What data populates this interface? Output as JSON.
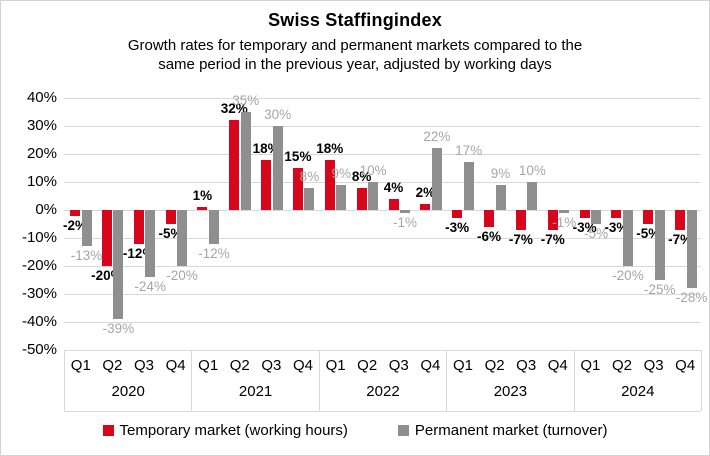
{
  "chart": {
    "title": "Swiss Staffingindex",
    "subtitle_lines": [
      "Growth rates for temporary and permanent markets compared to the",
      "same period in the previous year, adjusted by working days"
    ]
  },
  "chart_data": {
    "type": "bar",
    "title": "Swiss Staffingindex",
    "subtitle": "Growth rates for temporary and permanent markets compared to the same period in the previous year, adjusted by working days",
    "years": [
      "2020",
      "2021",
      "2022",
      "2023",
      "2024"
    ],
    "quarters": [
      "Q1",
      "Q2",
      "Q3",
      "Q4"
    ],
    "categories": [
      "2020 Q1",
      "2020 Q2",
      "2020 Q3",
      "2020 Q4",
      "2021 Q1",
      "2021 Q2",
      "2021 Q3",
      "2021 Q4",
      "2022 Q1",
      "2022 Q2",
      "2022 Q3",
      "2022 Q4",
      "2023 Q1",
      "2023 Q2",
      "2023 Q3",
      "2023 Q4",
      "2024 Q1",
      "2024 Q2",
      "2024 Q3",
      "2024 Q4"
    ],
    "series": [
      {
        "name": "Temporary market (working hours)",
        "color": "#d7061c",
        "label_color": "#000000",
        "values": [
          -2,
          -20,
          -12,
          -5,
          1,
          32,
          18,
          15,
          18,
          8,
          4,
          2,
          -3,
          -6,
          -7,
          -7,
          -3,
          -3,
          -5,
          -7
        ]
      },
      {
        "name": "Permanent market (turnover)",
        "color": "#8f8f8f",
        "label_color": "#a6a6a6",
        "values": [
          -13,
          -39,
          -24,
          -20,
          -12,
          35,
          30,
          8,
          9,
          10,
          -1,
          22,
          17,
          9,
          10,
          -1,
          -5,
          -20,
          -25,
          -28
        ]
      }
    ],
    "value_suffix": "%",
    "ylim": [
      -50,
      40
    ],
    "ytick_step": 10,
    "ytick_labels": [
      "40%",
      "30%",
      "20%",
      "10%",
      "0%",
      "-10%",
      "-20%",
      "-30%",
      "-40%",
      "-50%"
    ],
    "grid": true,
    "legend_position": "bottom",
    "colors": {
      "gridline": "#d9d9d9",
      "axis_band_border": "#d9d9d9",
      "temporary": "#d7061c",
      "permanent": "#8f8f8f",
      "permanent_label": "#a6a6a6"
    }
  }
}
